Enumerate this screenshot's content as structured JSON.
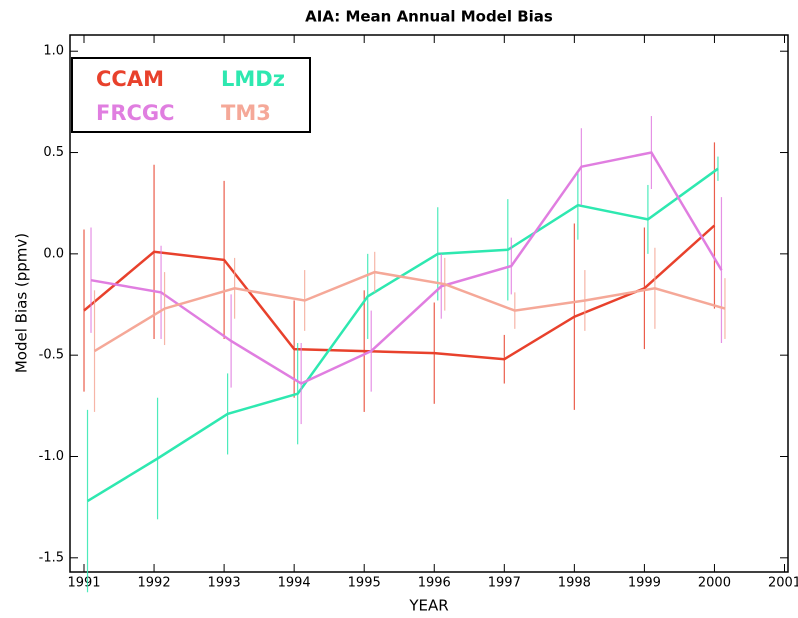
{
  "chart_data": {
    "type": "line",
    "title": "AIA: Mean Annual Model Bias",
    "x_label": "YEAR",
    "y_label": "Model Bias (ppmv)",
    "xlim": [
      1990.8,
      2001.05
    ],
    "ylim": [
      -1.57,
      1.08
    ],
    "xticks": [
      1991,
      1992,
      1993,
      1994,
      1995,
      1996,
      1997,
      1998,
      1999,
      2000,
      2001
    ],
    "yticks": [
      {
        "value": 1.0,
        "label": "1.0"
      },
      {
        "value": 0.5,
        "label": "0.5"
      },
      {
        "value": 0.0,
        "label": "0.0"
      },
      {
        "value": -0.5,
        "label": "-0.5"
      },
      {
        "value": -1.0,
        "label": "-1.0"
      },
      {
        "value": -1.5,
        "label": "-1.5"
      }
    ],
    "series": [
      {
        "name": "CCAM",
        "color": "#e8412c",
        "x": [
          1991,
          1992,
          1993,
          1994,
          1995,
          1996,
          1997,
          1998,
          1999,
          2000
        ],
        "values": [
          -0.28,
          0.01,
          -0.03,
          -0.47,
          -0.48,
          -0.49,
          -0.52,
          -0.31,
          -0.17,
          0.14
        ],
        "errors": [
          0.4,
          0.43,
          0.39,
          0.24,
          0.3,
          0.25,
          0.12,
          0.46,
          0.3,
          0.41
        ]
      },
      {
        "name": "LMDz",
        "color": "#2ee8b0",
        "x": [
          1991.05,
          1992.05,
          1993.05,
          1994.05,
          1995.05,
          1996.05,
          1997.05,
          1998.05,
          1999.05,
          2000.05
        ],
        "values": [
          -1.22,
          -1.01,
          -0.79,
          -0.69,
          -0.21,
          0.0,
          0.02,
          0.24,
          0.17,
          0.42
        ],
        "errors": [
          0.45,
          0.3,
          0.2,
          0.25,
          0.21,
          0.23,
          0.25,
          0.17,
          0.17,
          0.06
        ]
      },
      {
        "name": "FRCGC",
        "color": "#e07ee0",
        "x": [
          1991.1,
          1992.1,
          1993.1,
          1994.1,
          1995.1,
          1996.1,
          1997.1,
          1998.1,
          1999.1,
          2000.1
        ],
        "values": [
          -0.13,
          -0.19,
          -0.43,
          -0.64,
          -0.48,
          -0.16,
          -0.06,
          0.43,
          0.5,
          -0.08
        ],
        "errors": [
          0.26,
          0.23,
          0.23,
          0.2,
          0.2,
          0.16,
          0.14,
          0.19,
          0.18,
          0.36
        ]
      },
      {
        "name": "TM3",
        "color": "#f5a898",
        "x": [
          1991.15,
          1992.15,
          1993.15,
          1994.15,
          1995.15,
          1996.15,
          1997.15,
          1998.15,
          1999.15,
          2000.15
        ],
        "values": [
          -0.48,
          -0.27,
          -0.17,
          -0.23,
          -0.09,
          -0.15,
          -0.28,
          -0.23,
          -0.17,
          -0.27
        ],
        "errors": [
          0.3,
          0.18,
          0.15,
          0.15,
          0.1,
          0.13,
          0.09,
          0.15,
          0.2,
          0.15
        ]
      }
    ]
  }
}
